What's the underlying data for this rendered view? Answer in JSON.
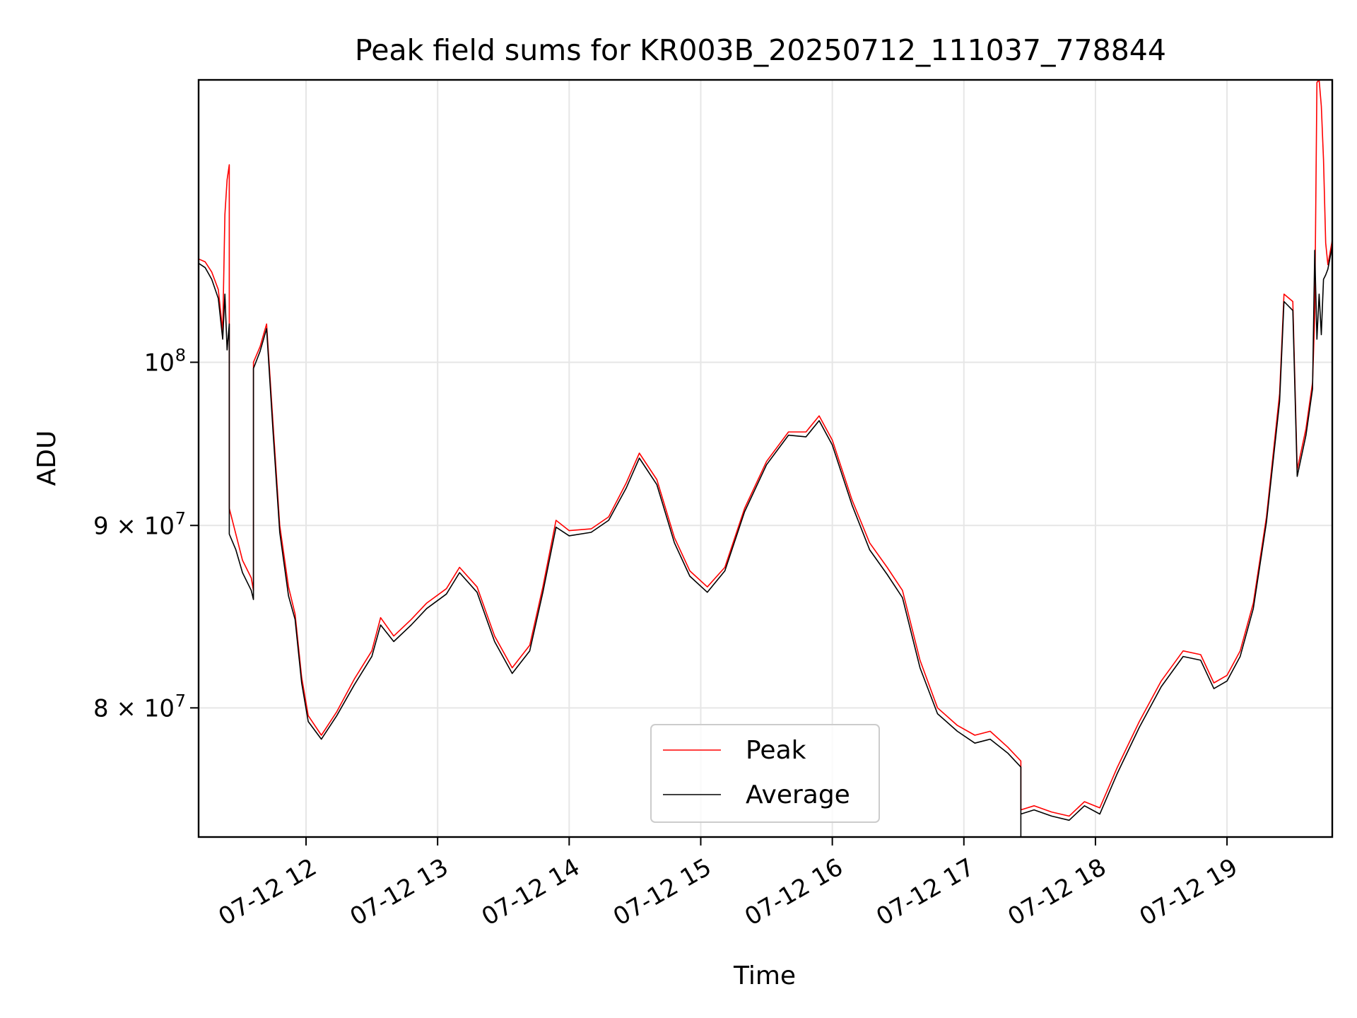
{
  "chart_data": {
    "type": "line",
    "title": "Peak field sums for KR003B_20250712_111037_778844",
    "xlabel": "Time",
    "ylabel": "ADU",
    "y_scale": "log",
    "grid": true,
    "legend_placement": "lower-center",
    "xlim": [
      "2025-07-12 11:11",
      "2025-07-12 19:48"
    ],
    "ylim": [
      73600000,
      120000000
    ],
    "x_ticks": [
      {
        "value": "2025-07-12 12:00",
        "label": "07-12 12"
      },
      {
        "value": "2025-07-12 13:00",
        "label": "07-12 13"
      },
      {
        "value": "2025-07-12 14:00",
        "label": "07-12 14"
      },
      {
        "value": "2025-07-12 15:00",
        "label": "07-12 15"
      },
      {
        "value": "2025-07-12 16:00",
        "label": "07-12 16"
      },
      {
        "value": "2025-07-12 17:00",
        "label": "07-12 17"
      },
      {
        "value": "2025-07-12 18:00",
        "label": "07-12 18"
      },
      {
        "value": "2025-07-12 19:00",
        "label": "07-12 19"
      }
    ],
    "y_ticks": [
      {
        "value": 80000000,
        "base": "8",
        "exp": "7"
      },
      {
        "value": 90000000,
        "base": "9",
        "exp": "7"
      },
      {
        "value": 100000000,
        "base": "",
        "exp": "8"
      }
    ],
    "series": [
      {
        "name": "Peak",
        "color": "#ff0000",
        "points": [
          [
            "2025-07-12 11:11",
            106900000
          ],
          [
            "2025-07-12 11:14",
            106700000
          ],
          [
            "2025-07-12 11:17",
            106000000
          ],
          [
            "2025-07-12 11:20",
            104800000
          ],
          [
            "2025-07-12 11:22",
            102000000
          ],
          [
            "2025-07-12 11:23",
            110000000
          ],
          [
            "2025-07-12 11:24",
            112500000
          ],
          [
            "2025-07-12 11:25",
            113600000
          ],
          [
            "2025-07-12 11:25",
            91000000
          ],
          [
            "2025-07-12 11:28",
            89500000
          ],
          [
            "2025-07-12 11:31",
            88000000
          ],
          [
            "2025-07-12 11:35",
            87000000
          ],
          [
            "2025-07-12 11:36",
            86300000
          ],
          [
            "2025-07-12 11:36",
            100000000
          ],
          [
            "2025-07-12 11:39",
            101000000
          ],
          [
            "2025-07-12 11:42",
            102500000
          ],
          [
            "2025-07-12 11:45",
            96000000
          ],
          [
            "2025-07-12 11:48",
            90000000
          ],
          [
            "2025-07-12 11:52",
            86500000
          ],
          [
            "2025-07-12 11:55",
            85000000
          ],
          [
            "2025-07-12 11:58",
            81600000
          ],
          [
            "2025-07-12 12:01",
            79600000
          ],
          [
            "2025-07-12 12:07",
            78600000
          ],
          [
            "2025-07-12 12:14",
            79800000
          ],
          [
            "2025-07-12 12:22",
            81500000
          ],
          [
            "2025-07-12 12:30",
            83000000
          ],
          [
            "2025-07-12 12:34",
            84800000
          ],
          [
            "2025-07-12 12:40",
            83800000
          ],
          [
            "2025-07-12 12:48",
            84700000
          ],
          [
            "2025-07-12 12:55",
            85600000
          ],
          [
            "2025-07-12 13:04",
            86400000
          ],
          [
            "2025-07-12 13:10",
            87600000
          ],
          [
            "2025-07-12 13:18",
            86500000
          ],
          [
            "2025-07-12 13:26",
            83800000
          ],
          [
            "2025-07-12 13:34",
            82100000
          ],
          [
            "2025-07-12 13:42",
            83300000
          ],
          [
            "2025-07-12 13:48",
            86500000
          ],
          [
            "2025-07-12 13:54",
            90300000
          ],
          [
            "2025-07-12 14:00",
            89700000
          ],
          [
            "2025-07-12 14:10",
            89800000
          ],
          [
            "2025-07-12 14:18",
            90500000
          ],
          [
            "2025-07-12 14:26",
            92500000
          ],
          [
            "2025-07-12 14:32",
            94300000
          ],
          [
            "2025-07-12 14:40",
            92700000
          ],
          [
            "2025-07-12 14:48",
            89300000
          ],
          [
            "2025-07-12 14:55",
            87400000
          ],
          [
            "2025-07-12 15:03",
            86500000
          ],
          [
            "2025-07-12 15:11",
            87600000
          ],
          [
            "2025-07-12 15:20",
            91000000
          ],
          [
            "2025-07-12 15:30",
            93800000
          ],
          [
            "2025-07-12 15:40",
            95600000
          ],
          [
            "2025-07-12 15:48",
            95600000
          ],
          [
            "2025-07-12 15:54",
            96600000
          ],
          [
            "2025-07-12 16:00",
            95100000
          ],
          [
            "2025-07-12 16:09",
            91500000
          ],
          [
            "2025-07-12 16:17",
            89000000
          ],
          [
            "2025-07-12 16:25",
            87600000
          ],
          [
            "2025-07-12 16:32",
            86300000
          ],
          [
            "2025-07-12 16:40",
            82500000
          ],
          [
            "2025-07-12 16:48",
            80000000
          ],
          [
            "2025-07-12 16:57",
            79100000
          ],
          [
            "2025-07-12 17:05",
            78600000
          ],
          [
            "2025-07-12 17:12",
            78800000
          ],
          [
            "2025-07-12 17:20",
            78000000
          ],
          [
            "2025-07-12 17:26",
            77300000
          ],
          [
            "2025-07-12 17:26",
            74900000
          ],
          [
            "2025-07-12 17:32",
            75100000
          ],
          [
            "2025-07-12 17:40",
            74800000
          ],
          [
            "2025-07-12 17:48",
            74600000
          ],
          [
            "2025-07-12 17:55",
            75300000
          ],
          [
            "2025-07-12 18:02",
            75000000
          ],
          [
            "2025-07-12 18:10",
            77000000
          ],
          [
            "2025-07-12 18:20",
            79300000
          ],
          [
            "2025-07-12 18:30",
            81400000
          ],
          [
            "2025-07-12 18:40",
            83000000
          ],
          [
            "2025-07-12 18:48",
            82800000
          ],
          [
            "2025-07-12 18:54",
            81300000
          ],
          [
            "2025-07-12 19:00",
            81700000
          ],
          [
            "2025-07-12 19:06",
            83000000
          ],
          [
            "2025-07-12 19:12",
            85600000
          ],
          [
            "2025-07-12 19:18",
            90500000
          ],
          [
            "2025-07-12 19:24",
            98000000
          ],
          [
            "2025-07-12 19:26",
            104500000
          ],
          [
            "2025-07-12 19:30",
            104000000
          ],
          [
            "2025-07-12 19:32",
            93300000
          ],
          [
            "2025-07-12 19:36",
            95800000
          ],
          [
            "2025-07-12 19:39",
            98700000
          ],
          [
            "2025-07-12 19:40",
            103000000
          ],
          [
            "2025-07-12 19:41",
            119800000
          ],
          [
            "2025-07-12 19:42",
            120000000
          ],
          [
            "2025-07-12 19:43",
            118000000
          ],
          [
            "2025-07-12 19:44",
            114000000
          ],
          [
            "2025-07-12 19:45",
            108000000
          ],
          [
            "2025-07-12 19:46",
            106500000
          ],
          [
            "2025-07-12 19:48",
            108200000
          ]
        ]
      },
      {
        "name": "Average",
        "color": "#000000",
        "points": [
          [
            "2025-07-12 11:11",
            106600000
          ],
          [
            "2025-07-12 11:14",
            106300000
          ],
          [
            "2025-07-12 11:17",
            105500000
          ],
          [
            "2025-07-12 11:20",
            104200000
          ],
          [
            "2025-07-12 11:22",
            101500000
          ],
          [
            "2025-07-12 11:23",
            104500000
          ],
          [
            "2025-07-12 11:24",
            100800000
          ],
          [
            "2025-07-12 11:25",
            102500000
          ],
          [
            "2025-07-12 11:25",
            89500000
          ],
          [
            "2025-07-12 11:28",
            88600000
          ],
          [
            "2025-07-12 11:31",
            87300000
          ],
          [
            "2025-07-12 11:35",
            86300000
          ],
          [
            "2025-07-12 11:36",
            85800000
          ],
          [
            "2025-07-12 11:36",
            99600000
          ],
          [
            "2025-07-12 11:39",
            100700000
          ],
          [
            "2025-07-12 11:42",
            102200000
          ],
          [
            "2025-07-12 11:45",
            95500000
          ],
          [
            "2025-07-12 11:48",
            89600000
          ],
          [
            "2025-07-12 11:52",
            86000000
          ],
          [
            "2025-07-12 11:55",
            84700000
          ],
          [
            "2025-07-12 11:58",
            81300000
          ],
          [
            "2025-07-12 12:01",
            79300000
          ],
          [
            "2025-07-12 12:07",
            78400000
          ],
          [
            "2025-07-12 12:14",
            79600000
          ],
          [
            "2025-07-12 12:22",
            81200000
          ],
          [
            "2025-07-12 12:30",
            82700000
          ],
          [
            "2025-07-12 12:34",
            84400000
          ],
          [
            "2025-07-12 12:40",
            83500000
          ],
          [
            "2025-07-12 12:48",
            84400000
          ],
          [
            "2025-07-12 12:55",
            85300000
          ],
          [
            "2025-07-12 13:04",
            86100000
          ],
          [
            "2025-07-12 13:10",
            87300000
          ],
          [
            "2025-07-12 13:18",
            86200000
          ],
          [
            "2025-07-12 13:26",
            83500000
          ],
          [
            "2025-07-12 13:34",
            81800000
          ],
          [
            "2025-07-12 13:42",
            83000000
          ],
          [
            "2025-07-12 13:48",
            86200000
          ],
          [
            "2025-07-12 13:54",
            89900000
          ],
          [
            "2025-07-12 14:00",
            89400000
          ],
          [
            "2025-07-12 14:10",
            89600000
          ],
          [
            "2025-07-12 14:18",
            90300000
          ],
          [
            "2025-07-12 14:26",
            92200000
          ],
          [
            "2025-07-12 14:32",
            94000000
          ],
          [
            "2025-07-12 14:40",
            92400000
          ],
          [
            "2025-07-12 14:48",
            89000000
          ],
          [
            "2025-07-12 14:55",
            87100000
          ],
          [
            "2025-07-12 15:03",
            86200000
          ],
          [
            "2025-07-12 15:11",
            87400000
          ],
          [
            "2025-07-12 15:20",
            90800000
          ],
          [
            "2025-07-12 15:30",
            93600000
          ],
          [
            "2025-07-12 15:40",
            95400000
          ],
          [
            "2025-07-12 15:48",
            95300000
          ],
          [
            "2025-07-12 15:54",
            96300000
          ],
          [
            "2025-07-12 16:00",
            94800000
          ],
          [
            "2025-07-12 16:09",
            91200000
          ],
          [
            "2025-07-12 16:17",
            88600000
          ],
          [
            "2025-07-12 16:25",
            87200000
          ],
          [
            "2025-07-12 16:32",
            85900000
          ],
          [
            "2025-07-12 16:40",
            82100000
          ],
          [
            "2025-07-12 16:48",
            79700000
          ],
          [
            "2025-07-12 16:57",
            78800000
          ],
          [
            "2025-07-12 17:05",
            78200000
          ],
          [
            "2025-07-12 17:12",
            78400000
          ],
          [
            "2025-07-12 17:20",
            77700000
          ],
          [
            "2025-07-12 17:26",
            77000000
          ],
          [
            "2025-07-12 17:26",
            73600000
          ],
          [
            "2025-07-12 17:26",
            74700000
          ],
          [
            "2025-07-12 17:32",
            74900000
          ],
          [
            "2025-07-12 17:40",
            74600000
          ],
          [
            "2025-07-12 17:48",
            74400000
          ],
          [
            "2025-07-12 17:55",
            75100000
          ],
          [
            "2025-07-12 18:02",
            74700000
          ],
          [
            "2025-07-12 18:10",
            76700000
          ],
          [
            "2025-07-12 18:20",
            79000000
          ],
          [
            "2025-07-12 18:30",
            81100000
          ],
          [
            "2025-07-12 18:40",
            82700000
          ],
          [
            "2025-07-12 18:48",
            82500000
          ],
          [
            "2025-07-12 18:54",
            81000000
          ],
          [
            "2025-07-12 19:00",
            81400000
          ],
          [
            "2025-07-12 19:06",
            82700000
          ],
          [
            "2025-07-12 19:12",
            85300000
          ],
          [
            "2025-07-12 19:18",
            90200000
          ],
          [
            "2025-07-12 19:24",
            97500000
          ],
          [
            "2025-07-12 19:26",
            104000000
          ],
          [
            "2025-07-12 19:30",
            103400000
          ],
          [
            "2025-07-12 19:32",
            92900000
          ],
          [
            "2025-07-12 19:36",
            95400000
          ],
          [
            "2025-07-12 19:39",
            98300000
          ],
          [
            "2025-07-12 19:40",
            107500000
          ],
          [
            "2025-07-12 19:41",
            101500000
          ],
          [
            "2025-07-12 19:42",
            104500000
          ],
          [
            "2025-07-12 19:43",
            101800000
          ],
          [
            "2025-07-12 19:44",
            105500000
          ],
          [
            "2025-07-12 19:45",
            105800000
          ],
          [
            "2025-07-12 19:46",
            106200000
          ],
          [
            "2025-07-12 19:48",
            107800000
          ]
        ]
      }
    ]
  }
}
